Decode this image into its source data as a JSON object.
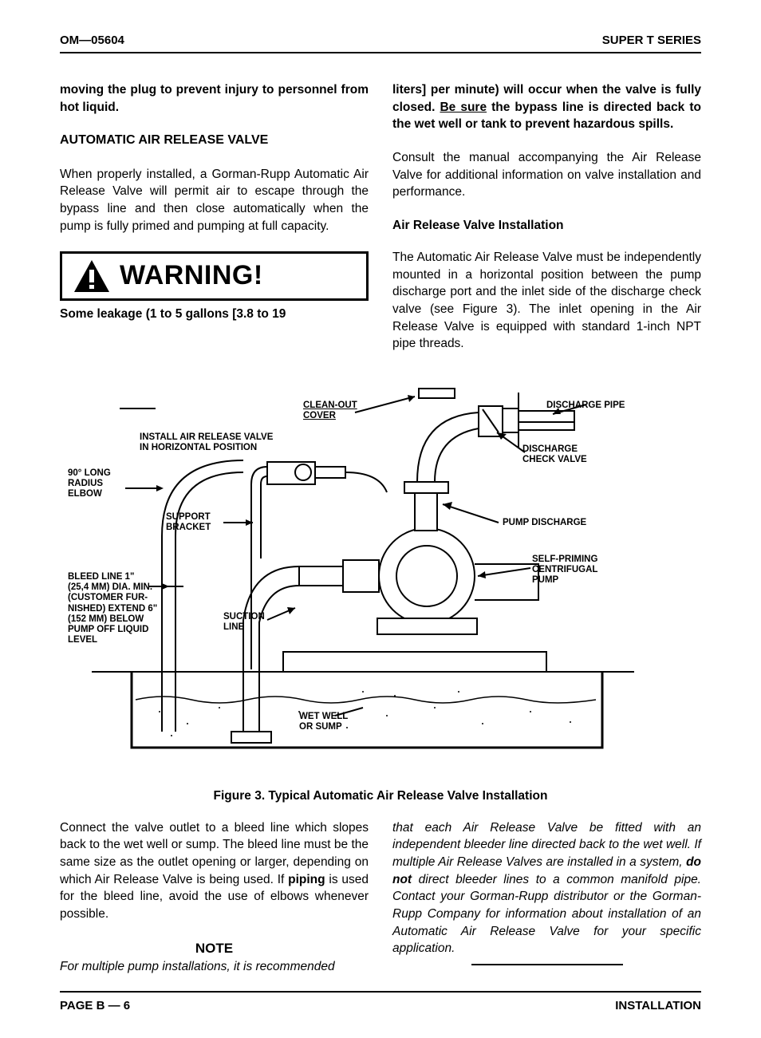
{
  "header": {
    "left": "OM—05604",
    "right": "SUPER T SERIES"
  },
  "col_left": {
    "p1": "moving the plug to prevent injury to personnel from hot liquid.",
    "h2": "AUTOMATIC AIR RELEASE VALVE",
    "p2": "When properly installed, a Gorman-Rupp Automatic Air Release Valve will permit air to escape through the bypass line and then close automatically when the pump is fully primed and pumping at full capacity.",
    "warning": "WARNING!",
    "p3": "Some leakage (1 to 5 gallons [3.8 to 19"
  },
  "col_right": {
    "p1a": "liters] per minute) will occur when the valve is fully closed. ",
    "p1b": "Be sure",
    "p1c": " the bypass line is directed back to the wet well or tank to prevent hazardous spills.",
    "p2": "Consult the manual accompanying the Air Release Valve for additional information on valve installation and performance.",
    "h3": "Air Release Valve Installation",
    "p3": "The Automatic Air Release Valve must be independently mounted in a horizontal position between the pump discharge port and the inlet side of the discharge check valve (see Figure 3). The inlet opening in the Air Release Valve is equipped with standard 1-inch NPT pipe threads."
  },
  "figure": {
    "labels": {
      "cleanout": "CLEAN-OUT\nCOVER",
      "install": "INSTALL AIR RELEASE VALVE\nIN HORIZONTAL POSITION",
      "elbow": "90° LONG\nRADIUS\nELBOW",
      "support": "SUPPORT\nBRACKET",
      "bleed": "BLEED LINE 1\"\n(25,4 MM) DIA. MIN.\n(CUSTOMER FUR-\nNISHED) EXTEND 6\"\n(152 MM) BELOW\nPUMP OFF LIQUID\nLEVEL",
      "suction": "SUCTION\nLINE",
      "wetwell": "WET WELL\nOR SUMP",
      "discharge_pipe": "DISCHARGE PIPE",
      "check_valve": "DISCHARGE\nCHECK VALVE",
      "pump_discharge": "PUMP DISCHARGE",
      "self_priming": "SELF-PRIMING\nCENTRIFUGAL\nPUMP"
    },
    "caption": "Figure 3. Typical Automatic Air Release Valve Installation"
  },
  "bottom_left": {
    "p1": "Connect the valve outlet to a bleed line which slopes back to the wet well or sump. The bleed line must be the same size as the outlet opening or larger, depending on which Air Release Valve is being used. If ",
    "p1b": "piping",
    "p1c": " is used for the bleed line, avoid the use of elbows whenever possible.",
    "note": "NOTE",
    "p2": "For multiple pump installations, it is recommended"
  },
  "bottom_right": {
    "p1": "that each Air Release Valve be fitted with an independent bleeder line directed back to the wet well. If multiple Air Release Valves are installed in a system, ",
    "p1b": "do not",
    "p1c": " direct bleeder lines to a common manifold pipe. Contact your Gorman-Rupp distributor or the Gorman-Rupp Company for information about installation of an Automatic Air Release Valve for your specific application."
  },
  "footer": {
    "left": "PAGE B — 6",
    "right": "INSTALLATION"
  }
}
